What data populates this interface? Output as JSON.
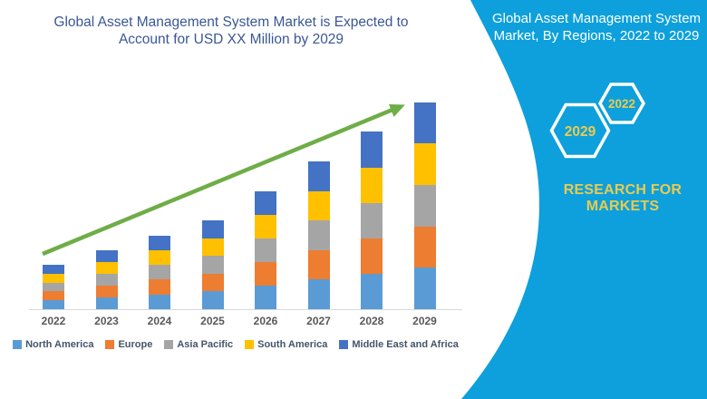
{
  "left_panel": {
    "title_lines": [
      "Global Asset Management System Market is Expected to",
      "Account for USD XX Million by 2029"
    ]
  },
  "chart_data": {
    "type": "bar",
    "stacked": true,
    "title": "Global Asset Management System Market is Expected to Account for USD XX Million by 2029",
    "categories": [
      "2022",
      "2023",
      "2024",
      "2025",
      "2026",
      "2027",
      "2028",
      "2029"
    ],
    "series": [
      {
        "name": "North America",
        "color": "#5b9bd5",
        "values": [
          0.6,
          0.8,
          1.0,
          1.2,
          1.6,
          2.0,
          2.4,
          2.8
        ]
      },
      {
        "name": "Europe",
        "color": "#ed7d31",
        "values": [
          0.6,
          0.8,
          1.0,
          1.2,
          1.6,
          2.0,
          2.4,
          2.8
        ]
      },
      {
        "name": "Asia Pacific",
        "color": "#a5a5a5",
        "values": [
          0.6,
          0.8,
          1.0,
          1.2,
          1.6,
          2.0,
          2.4,
          2.8
        ]
      },
      {
        "name": "South America",
        "color": "#ffc000",
        "values": [
          0.6,
          0.8,
          1.0,
          1.2,
          1.6,
          2.0,
          2.4,
          2.8
        ]
      },
      {
        "name": "Middle East and Africa",
        "color": "#4472c4",
        "values": [
          0.6,
          0.8,
          1.0,
          1.2,
          1.6,
          2.0,
          2.4,
          2.8
        ]
      }
    ],
    "totals_estimated": [
      3,
      4,
      5,
      6,
      8,
      10,
      12,
      14
    ],
    "value_note": "No numeric y-axis shown; values estimated from relative bar heights (segments are equal fifths of each total)",
    "unit": "USD Million (amounts shown as XX)",
    "xlabel": "",
    "ylabel": "",
    "y_axis_visible": false,
    "grid": false,
    "legend_position": "bottom",
    "annotations": [
      {
        "type": "trend-arrow",
        "direction": "up-right",
        "color": "#6fad47"
      }
    ]
  },
  "right_panel": {
    "title_lines": [
      "Global Asset Management System",
      "Market, By Regions, 2022 to 2029"
    ],
    "badges": [
      {
        "label": "2022"
      },
      {
        "label": "2029"
      }
    ],
    "brand_lines": [
      "RESEARCH FOR",
      "MARKETS"
    ]
  },
  "colors": {
    "panel_bg": "#0da0dc",
    "panel_text": "#ffffff",
    "brand_yellow": "#eacb4f",
    "title_text": "#3a5795",
    "axis_label_text": "#595959",
    "legend_text": "#44546a",
    "axis_line": "#d9d9d9",
    "trend_arrow": "#6fad47"
  }
}
